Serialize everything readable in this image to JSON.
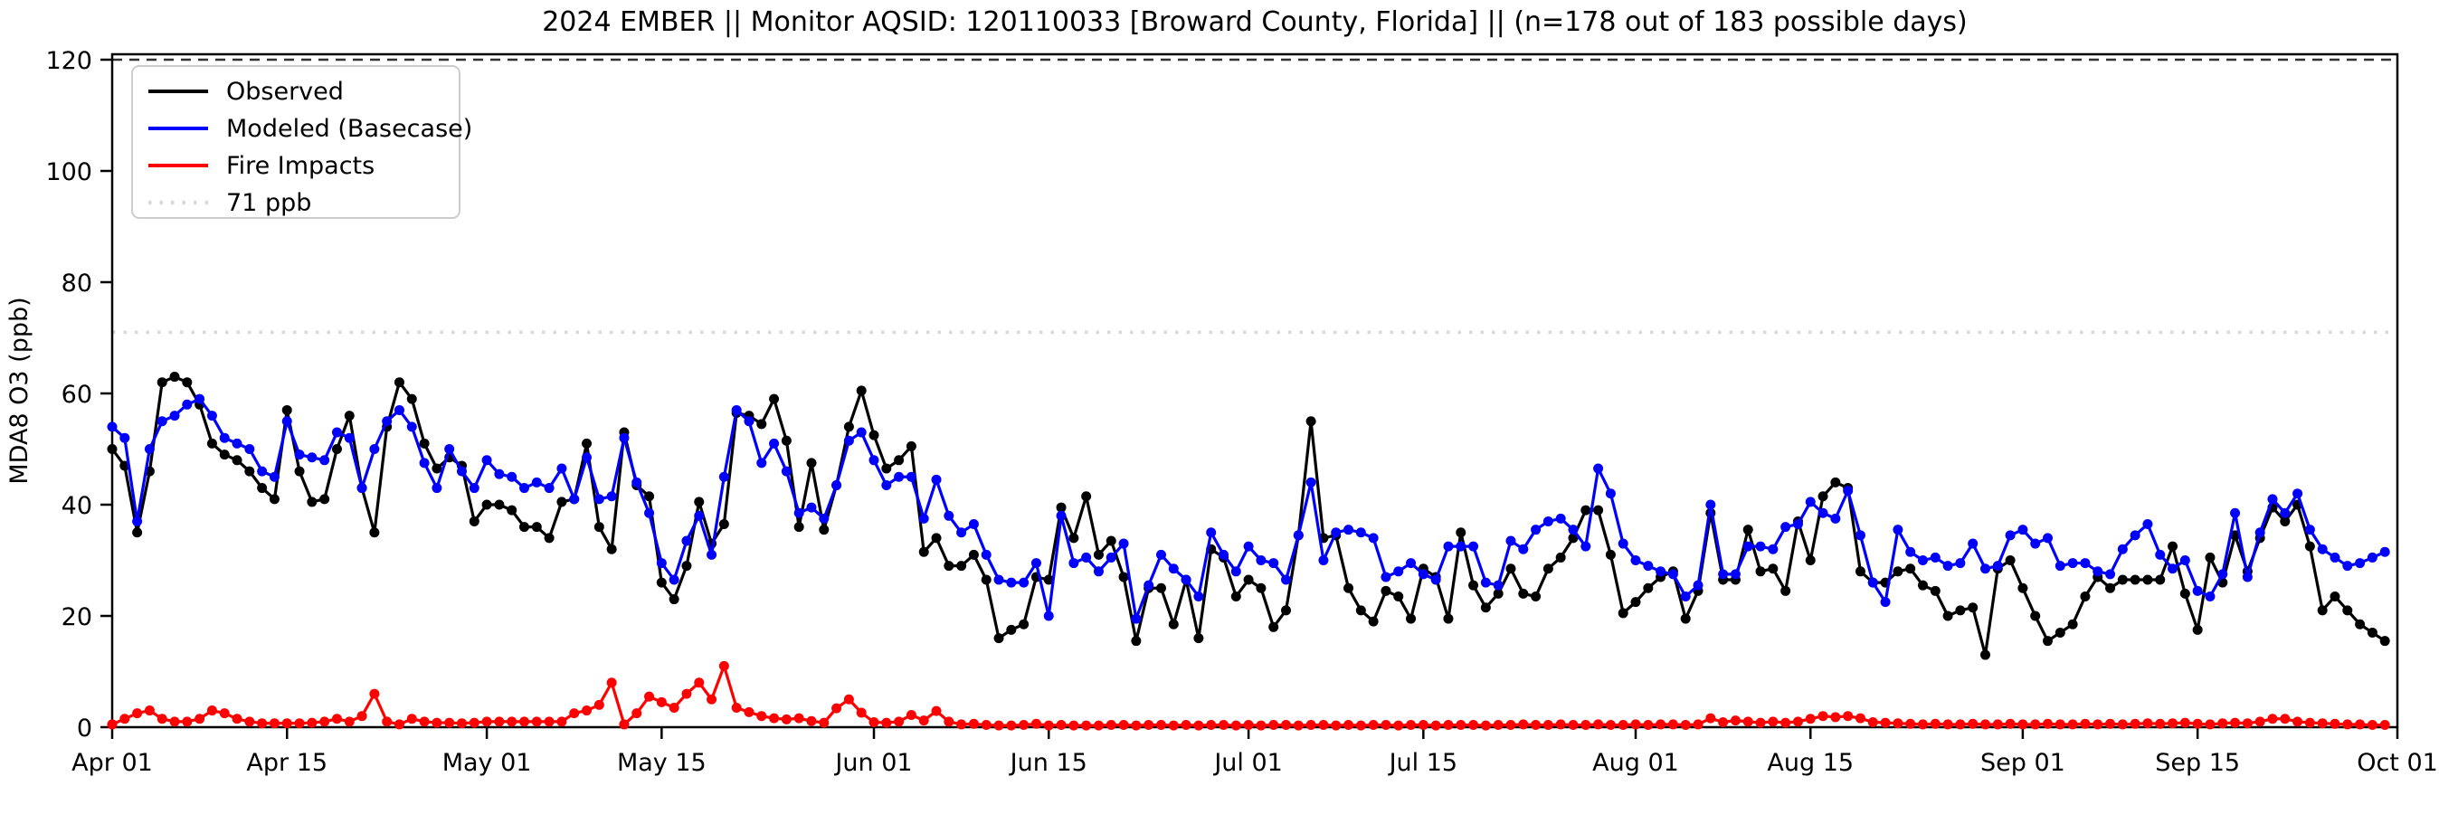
{
  "title": "2024 EMBER || Monitor AQSID: 120110033 [Broward County, Florida] || (n=178 out of 183 possible days)",
  "chart_data": {
    "type": "line",
    "title": "2024 EMBER || Monitor AQSID: 120110033 [Broward County, Florida] || (n=178 out of 183 possible days)",
    "xlabel": "",
    "ylabel": "MDA8 O3 (ppb)",
    "ylim": [
      0,
      120
    ],
    "yticks": [
      0,
      20,
      40,
      60,
      80,
      100,
      120
    ],
    "grid": false,
    "legend_position": "upper-left",
    "x_start": "Apr 01",
    "x_end": "Oct 01",
    "n_days": 183,
    "xticks": [
      {
        "day": 0,
        "label": "Apr 01"
      },
      {
        "day": 14,
        "label": "Apr 15"
      },
      {
        "day": 30,
        "label": "May 01"
      },
      {
        "day": 44,
        "label": "May 15"
      },
      {
        "day": 61,
        "label": "Jun 01"
      },
      {
        "day": 75,
        "label": "Jun 15"
      },
      {
        "day": 91,
        "label": "Jul 01"
      },
      {
        "day": 105,
        "label": "Jul 15"
      },
      {
        "day": 122,
        "label": "Aug 01"
      },
      {
        "day": 136,
        "label": "Aug 15"
      },
      {
        "day": 153,
        "label": "Sep 01"
      },
      {
        "day": 167,
        "label": "Sep 15"
      },
      {
        "day": 183,
        "label": "Oct 01"
      }
    ],
    "legend": [
      {
        "label": "Observed",
        "color": "#000000",
        "style": "solid"
      },
      {
        "label": "Modeled (Basecase)",
        "color": "#0000ff",
        "style": "solid"
      },
      {
        "label": "Fire Impacts",
        "color": "#ff0000",
        "style": "solid"
      },
      {
        "label": "71 ppb",
        "color": "#d9d9d9",
        "style": "dotted"
      }
    ],
    "threshold_line_ppb": 71,
    "threshold_color": "#d9d9d9",
    "top_dashed_line_ppb": 120,
    "top_dashed_color": "#333333",
    "series": [
      {
        "name": "Observed",
        "color": "#000000",
        "values": [
          50,
          47,
          35,
          46,
          62,
          63,
          62,
          58,
          51,
          49,
          48,
          46,
          43,
          41,
          57,
          46,
          40.5,
          41,
          50,
          56,
          43,
          35,
          54,
          62,
          59,
          51,
          46.5,
          48.5,
          47,
          37,
          40,
          40,
          39,
          36,
          36,
          34,
          40.5,
          41,
          51,
          36,
          32,
          53,
          43.5,
          41.5,
          26,
          23,
          29,
          40.5,
          33,
          36.5,
          56.5,
          56,
          54.5,
          59,
          51.5,
          36,
          47.5,
          35.5,
          43.5,
          54,
          60.5,
          52.5,
          46.5,
          48,
          50.5,
          31.5,
          34,
          29,
          29,
          31,
          26.5,
          16,
          17.5,
          18.5,
          27,
          26.5,
          39.5,
          34,
          41.5,
          31,
          33.5,
          27,
          15.5,
          25,
          25,
          18.5,
          26.5,
          16,
          32,
          30.5,
          23.5,
          26.5,
          25,
          18,
          21,
          34.5,
          55,
          34,
          34.5,
          25,
          21,
          19,
          24.5,
          23.5,
          19.5,
          28.5,
          27,
          19.5,
          35,
          25.5,
          21.5,
          24,
          28.5,
          24,
          23.5,
          28.5,
          30.5,
          34,
          39,
          39,
          31,
          20.5,
          22.5,
          25,
          27,
          28,
          19.5,
          24.5,
          38.5,
          26.5,
          26.5,
          35.5,
          28,
          28.5,
          24.5,
          37,
          30,
          41.5,
          44,
          43,
          28,
          26,
          26,
          28,
          28.5,
          25.5,
          24.5,
          20,
          21,
          21.5,
          13,
          28.5,
          30,
          25,
          20,
          15.5,
          17,
          18.5,
          23.5,
          27,
          25,
          26.5,
          26.5,
          26.5,
          26.5,
          32.5,
          24,
          17.5,
          30.5,
          26,
          34.5,
          28,
          34,
          39.5,
          37,
          40,
          32.5,
          21,
          23.5,
          21,
          18.5,
          17,
          15.5
        ]
      },
      {
        "name": "Modeled (Basecase)",
        "color": "#0000ff",
        "values": [
          54,
          52,
          37,
          50,
          55,
          56,
          58,
          59,
          56,
          52,
          51,
          50,
          46,
          45,
          55,
          49,
          48.5,
          48,
          53,
          52,
          43,
          50,
          55,
          57,
          54,
          47.5,
          43,
          50,
          46,
          43,
          48,
          45.5,
          45,
          43,
          44,
          43,
          46.5,
          41,
          48.5,
          41,
          41.5,
          52,
          44,
          38.5,
          29.5,
          26.5,
          33.5,
          38,
          31,
          45,
          57,
          55,
          47.5,
          51,
          46,
          38.5,
          39.5,
          37.5,
          43.5,
          51.5,
          53,
          48,
          43.5,
          45,
          45,
          37.5,
          44.5,
          38,
          35,
          36.5,
          31,
          26.5,
          26,
          26,
          29.5,
          20,
          38,
          29.5,
          30.5,
          28,
          30.5,
          33,
          19.5,
          25.5,
          31,
          28.5,
          26.5,
          23.5,
          35,
          31,
          28,
          32.5,
          30,
          29.5,
          26.5,
          34.5,
          44,
          30,
          35,
          35.5,
          35,
          34,
          27,
          28,
          29.5,
          27.5,
          26.5,
          32.5,
          32.5,
          32.5,
          26,
          25.5,
          33.5,
          32,
          35.5,
          37,
          37.5,
          35.5,
          32.5,
          46.5,
          42,
          33,
          30,
          29,
          28,
          27.5,
          23.5,
          25.5,
          40,
          27.5,
          27.5,
          32.5,
          32.5,
          32,
          36,
          36.5,
          40.5,
          38.5,
          37.5,
          42.5,
          34.5,
          26,
          22.5,
          35.5,
          31.5,
          30,
          30.5,
          29,
          29.5,
          33,
          28.5,
          29,
          34.5,
          35.5,
          33,
          34,
          29,
          29.5,
          29.5,
          28,
          27.5,
          32,
          34.5,
          36.5,
          31,
          28.5,
          30,
          24.5,
          23.5,
          27.5,
          38.5,
          27,
          35,
          41,
          38.5,
          42,
          35.5,
          32,
          30.5,
          29,
          29.5,
          30.5,
          31.5
        ]
      },
      {
        "name": "Fire Impacts",
        "color": "#ff0000",
        "values": [
          0.5,
          1.5,
          2.5,
          3,
          1.5,
          1,
          1,
          1.5,
          3,
          2.5,
          1.5,
          1,
          0.7,
          0.7,
          0.7,
          0.7,
          0.8,
          1,
          1.5,
          1,
          2,
          6,
          1,
          0.5,
          1.5,
          1,
          0.8,
          0.8,
          0.7,
          0.8,
          1,
          1,
          1,
          1,
          1,
          1,
          1,
          2.5,
          3,
          4,
          8,
          0.5,
          2.5,
          5.5,
          4.5,
          3.5,
          6,
          8,
          5,
          11,
          3.5,
          2.7,
          2,
          1.6,
          1.4,
          1.6,
          1.1,
          0.8,
          3.4,
          5,
          2.6,
          0.9,
          0.8,
          1,
          2.2,
          1.2,
          2.9,
          1,
          0.5,
          0.6,
          0.4,
          0.3,
          0.3,
          0.4,
          0.6,
          0.3,
          0.4,
          0.3,
          0.3,
          0.3,
          0.4,
          0.4,
          0.3,
          0.4,
          0.4,
          0.3,
          0.4,
          0.3,
          0.4,
          0.4,
          0.3,
          0.4,
          0.3,
          0.4,
          0.4,
          0.3,
          0.4,
          0.4,
          0.3,
          0.4,
          0.3,
          0.4,
          0.4,
          0.3,
          0.4,
          0.4,
          0.3,
          0.4,
          0.4,
          0.4,
          0.3,
          0.4,
          0.4,
          0.5,
          0.4,
          0.4,
          0.5,
          0.4,
          0.4,
          0.5,
          0.4,
          0.4,
          0.5,
          0.4,
          0.5,
          0.5,
          0.4,
          0.5,
          1.6,
          0.9,
          1.2,
          1,
          0.8,
          1,
          0.8,
          1,
          1.5,
          2,
          1.8,
          2,
          1.6,
          0.9,
          0.8,
          0.7,
          0.6,
          0.5,
          0.6,
          0.5,
          0.5,
          0.6,
          0.5,
          0.5,
          0.6,
          0.5,
          0.5,
          0.6,
          0.5,
          0.5,
          0.6,
          0.5,
          0.6,
          0.5,
          0.6,
          0.7,
          0.6,
          0.7,
          0.8,
          0.6,
          0.5,
          0.7,
          0.8,
          0.7,
          1,
          1.5,
          1.5,
          1,
          0.8,
          0.7,
          0.6,
          0.5,
          0.5,
          0.4,
          0.4
        ]
      }
    ]
  }
}
